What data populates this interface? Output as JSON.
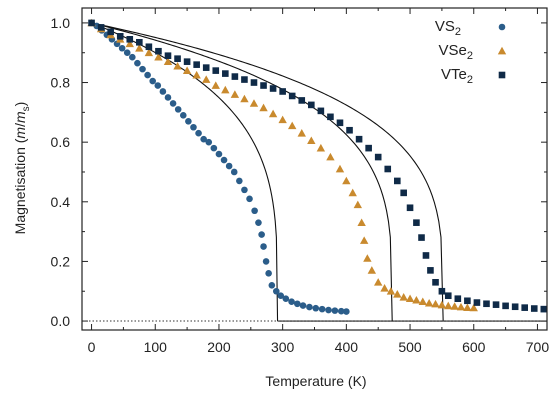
{
  "chart_data": {
    "type": "scatter",
    "xlabel": "Temperature (K)",
    "ylabel": {
      "prefix": "Magnetisation (",
      "m": "m",
      "slash": "/",
      "ms": "m",
      "sub": "s",
      "suffix": ")"
    },
    "xlim": [
      -15,
      715
    ],
    "ylim": [
      -0.03,
      1.05
    ],
    "x_ticks": [
      0,
      100,
      200,
      300,
      400,
      500,
      600,
      700
    ],
    "y_ticks": [
      0.0,
      0.2,
      0.4,
      0.6,
      0.8,
      1.0
    ],
    "x_tick_labels": [
      "0",
      "100",
      "200",
      "300",
      "400",
      "500",
      "600",
      "700"
    ],
    "y_tick_labels": [
      "0.0",
      "0.2",
      "0.4",
      "0.6",
      "0.8",
      "1.0"
    ],
    "grid": false,
    "zero_line": "dotted",
    "legend_position": "top-right",
    "series": [
      {
        "name": "VS2",
        "label_base": "VS",
        "label_sub": "2",
        "marker": "circle",
        "color": "#2b5d8a",
        "points": [
          [
            0,
            1.0
          ],
          [
            8,
            0.99
          ],
          [
            16,
            0.975
          ],
          [
            24,
            0.96
          ],
          [
            32,
            0.945
          ],
          [
            40,
            0.93
          ],
          [
            48,
            0.915
          ],
          [
            56,
            0.9
          ],
          [
            64,
            0.885
          ],
          [
            72,
            0.865
          ],
          [
            80,
            0.845
          ],
          [
            88,
            0.825
          ],
          [
            96,
            0.805
          ],
          [
            104,
            0.79
          ],
          [
            112,
            0.77
          ],
          [
            120,
            0.75
          ],
          [
            128,
            0.73
          ],
          [
            136,
            0.71
          ],
          [
            144,
            0.69
          ],
          [
            152,
            0.67
          ],
          [
            160,
            0.65
          ],
          [
            168,
            0.63
          ],
          [
            176,
            0.61
          ],
          [
            184,
            0.6
          ],
          [
            192,
            0.58
          ],
          [
            200,
            0.56
          ],
          [
            208,
            0.54
          ],
          [
            216,
            0.52
          ],
          [
            224,
            0.5
          ],
          [
            232,
            0.47
          ],
          [
            240,
            0.44
          ],
          [
            248,
            0.41
          ],
          [
            256,
            0.37
          ],
          [
            262,
            0.33
          ],
          [
            267,
            0.29
          ],
          [
            270,
            0.25
          ],
          [
            274,
            0.2
          ],
          [
            278,
            0.16
          ],
          [
            283,
            0.12
          ],
          [
            290,
            0.1
          ],
          [
            297,
            0.085
          ],
          [
            305,
            0.075
          ],
          [
            314,
            0.065
          ],
          [
            323,
            0.058
          ],
          [
            332,
            0.052
          ],
          [
            342,
            0.047
          ],
          [
            352,
            0.043
          ],
          [
            362,
            0.04
          ],
          [
            372,
            0.037
          ],
          [
            382,
            0.035
          ],
          [
            392,
            0.033
          ],
          [
            400,
            0.032
          ]
        ]
      },
      {
        "name": "VSe2",
        "label_base": "VSe",
        "label_sub": "2",
        "marker": "triangle",
        "color": "#c98a2e",
        "points": [
          [
            0,
            1.0
          ],
          [
            15,
            0.98
          ],
          [
            30,
            0.96
          ],
          [
            45,
            0.945
          ],
          [
            60,
            0.93
          ],
          [
            75,
            0.915
          ],
          [
            90,
            0.9
          ],
          [
            105,
            0.885
          ],
          [
            120,
            0.87
          ],
          [
            135,
            0.855
          ],
          [
            150,
            0.84
          ],
          [
            165,
            0.825
          ],
          [
            180,
            0.81
          ],
          [
            195,
            0.79
          ],
          [
            210,
            0.775
          ],
          [
            225,
            0.76
          ],
          [
            240,
            0.745
          ],
          [
            255,
            0.73
          ],
          [
            270,
            0.715
          ],
          [
            285,
            0.695
          ],
          [
            300,
            0.675
          ],
          [
            315,
            0.655
          ],
          [
            330,
            0.63
          ],
          [
            345,
            0.605
          ],
          [
            360,
            0.58
          ],
          [
            375,
            0.55
          ],
          [
            390,
            0.51
          ],
          [
            400,
            0.47
          ],
          [
            410,
            0.43
          ],
          [
            418,
            0.39
          ],
          [
            424,
            0.33
          ],
          [
            428,
            0.27
          ],
          [
            433,
            0.21
          ],
          [
            440,
            0.17
          ],
          [
            450,
            0.13
          ],
          [
            460,
            0.11
          ],
          [
            470,
            0.1
          ],
          [
            480,
            0.09
          ],
          [
            490,
            0.08
          ],
          [
            500,
            0.075
          ],
          [
            510,
            0.07
          ],
          [
            520,
            0.065
          ],
          [
            530,
            0.06
          ],
          [
            540,
            0.057
          ],
          [
            550,
            0.054
          ],
          [
            560,
            0.051
          ],
          [
            570,
            0.049
          ],
          [
            580,
            0.047
          ],
          [
            590,
            0.045
          ],
          [
            600,
            0.044
          ]
        ]
      },
      {
        "name": "VTe2",
        "label_base": "VTe",
        "label_sub": "2",
        "marker": "square",
        "color": "#0f2a47",
        "points": [
          [
            0,
            1.0
          ],
          [
            15,
            0.985
          ],
          [
            30,
            0.97
          ],
          [
            45,
            0.955
          ],
          [
            60,
            0.945
          ],
          [
            75,
            0.935
          ],
          [
            90,
            0.92
          ],
          [
            105,
            0.905
          ],
          [
            120,
            0.89
          ],
          [
            135,
            0.88
          ],
          [
            150,
            0.87
          ],
          [
            165,
            0.86
          ],
          [
            180,
            0.85
          ],
          [
            195,
            0.84
          ],
          [
            210,
            0.83
          ],
          [
            225,
            0.82
          ],
          [
            240,
            0.81
          ],
          [
            255,
            0.8
          ],
          [
            270,
            0.79
          ],
          [
            285,
            0.78
          ],
          [
            300,
            0.77
          ],
          [
            315,
            0.755
          ],
          [
            330,
            0.74
          ],
          [
            345,
            0.725
          ],
          [
            360,
            0.705
          ],
          [
            375,
            0.685
          ],
          [
            390,
            0.665
          ],
          [
            405,
            0.64
          ],
          [
            420,
            0.61
          ],
          [
            435,
            0.58
          ],
          [
            450,
            0.55
          ],
          [
            465,
            0.51
          ],
          [
            480,
            0.47
          ],
          [
            490,
            0.43
          ],
          [
            500,
            0.38
          ],
          [
            510,
            0.33
          ],
          [
            518,
            0.28
          ],
          [
            525,
            0.22
          ],
          [
            532,
            0.17
          ],
          [
            540,
            0.13
          ],
          [
            550,
            0.1
          ],
          [
            560,
            0.085
          ],
          [
            575,
            0.075
          ],
          [
            590,
            0.068
          ],
          [
            605,
            0.062
          ],
          [
            620,
            0.058
          ],
          [
            635,
            0.055
          ],
          [
            650,
            0.051
          ],
          [
            665,
            0.048
          ],
          [
            680,
            0.045
          ],
          [
            695,
            0.042
          ],
          [
            710,
            0.04
          ]
        ]
      }
    ],
    "fit_curves": [
      {
        "series": "VS2",
        "tc": 292,
        "beta": 0.25
      },
      {
        "series": "VSe2",
        "tc": 472,
        "beta": 0.25
      },
      {
        "series": "VTe2",
        "tc": 552,
        "beta": 0.25
      }
    ]
  }
}
